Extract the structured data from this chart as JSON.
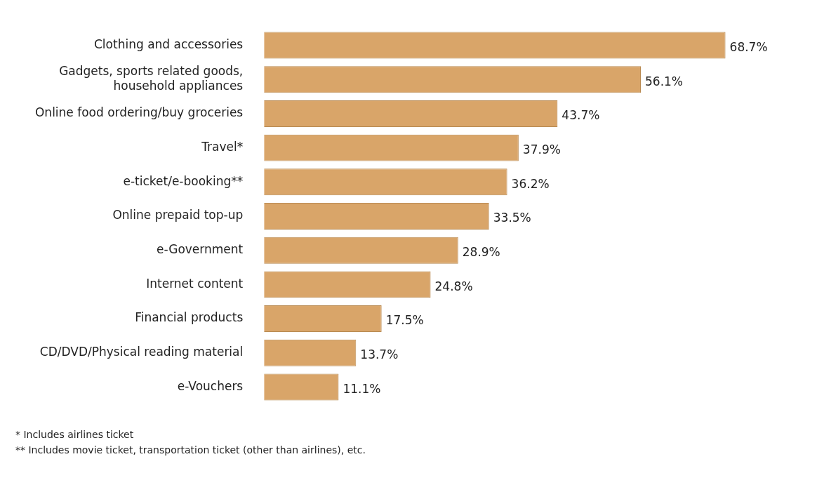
{
  "chart_data": {
    "type": "bar",
    "orientation": "horizontal",
    "categories": [
      "Clothing and accessories",
      "Gadgets, sports related goods, household appliances",
      "Online food ordering/buy groceries",
      "Travel*",
      "e-ticket/e-booking**",
      "Online prepaid top-up",
      "e-Government",
      "Internet content",
      "Financial products",
      "CD/DVD/Physical reading material",
      "e-Vouchers"
    ],
    "values": [
      68.7,
      56.1,
      43.7,
      37.9,
      36.2,
      33.5,
      28.9,
      24.8,
      17.5,
      13.7,
      11.1
    ],
    "value_labels": [
      "68.7%",
      "56.1%",
      "43.7%",
      "37.9%",
      "36.2%",
      "33.5%",
      "28.9%",
      "24.8%",
      "17.5%",
      "13.7%",
      "11.1%"
    ],
    "color": "#d9a569",
    "legend": false,
    "annotations": [
      "* Includes airlines ticket",
      "** Includes movie ticket, transportation ticket (other than airlines), etc."
    ]
  }
}
